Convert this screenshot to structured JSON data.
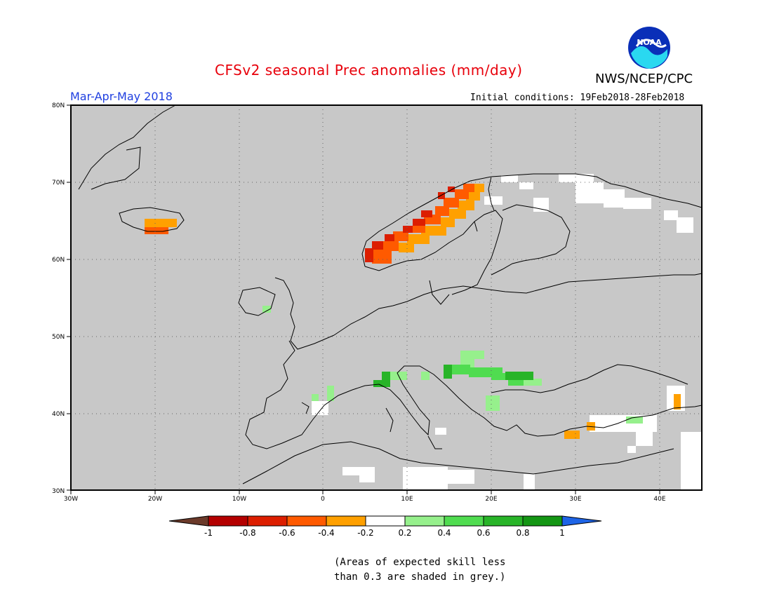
{
  "header": {
    "title": "CFSv2 seasonal Prec anomalies (mm/day)",
    "organization": "NWS/NCEP/CPC",
    "logo_text": "NOAA",
    "season": "Mar-Apr-May 2018",
    "initial_conditions": "Initial conditions: 19Feb2018-28Feb2018"
  },
  "map": {
    "region": "Europe",
    "lat_ticks": [
      "80N",
      "70N",
      "60N",
      "50N",
      "40N",
      "30N"
    ],
    "lon_ticks": [
      "30W",
      "20W",
      "10W",
      "0",
      "10E",
      "20E",
      "30E",
      "40E"
    ],
    "no_skill_color": "#c8c8c8",
    "land_border_color": "#000000"
  },
  "colorbar": {
    "labels": [
      "-1",
      "-0.8",
      "-0.6",
      "-0.4",
      "-0.2",
      "0.2",
      "0.4",
      "0.6",
      "0.8",
      "1"
    ],
    "colors": [
      "#6b3a2a",
      "#b40000",
      "#dc1e00",
      "#ff5a00",
      "#ffa000",
      "#ffffff",
      "#96f08c",
      "#50dc50",
      "#28b428",
      "#149614",
      "#1e64e6"
    ]
  },
  "note": {
    "line1": "(Areas of expected skill less",
    "line2": "than 0.3 are shaded in grey.)"
  }
}
